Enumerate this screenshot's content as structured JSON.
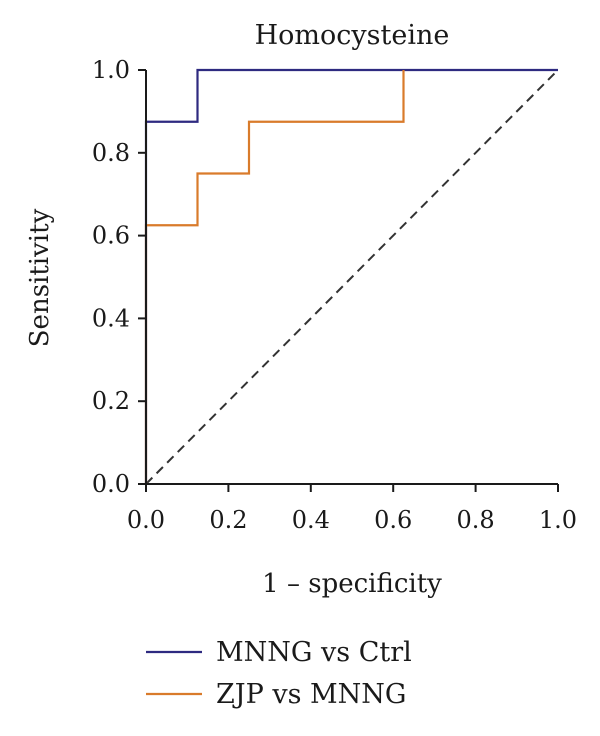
{
  "chart_data": {
    "type": "line",
    "title": "Homocysteine",
    "xlabel": "1 – specificity",
    "ylabel": "Sensitivity",
    "xlim": [
      0.0,
      1.0
    ],
    "ylim": [
      0.0,
      1.0
    ],
    "x_ticks": [
      "0.0",
      "0.2",
      "0.4",
      "0.6",
      "0.8",
      "1.0"
    ],
    "y_ticks": [
      "0.0",
      "0.2",
      "0.4",
      "0.6",
      "0.8",
      "1.0"
    ],
    "grid": false,
    "legend_position": "bottom",
    "reference_line": {
      "style": "dashed",
      "color": "#333333",
      "x": [
        0.0,
        1.0
      ],
      "y": [
        0.0,
        1.0
      ]
    },
    "series": [
      {
        "name": "MNNG vs Ctrl",
        "color": "#2e2a80",
        "x": [
          0.0,
          0.0,
          0.125,
          0.125,
          1.0
        ],
        "y": [
          0.0,
          0.875,
          0.875,
          1.0,
          1.0
        ]
      },
      {
        "name": "ZJP vs MNNG",
        "color": "#d97b2b",
        "x": [
          0.0,
          0.0,
          0.125,
          0.125,
          0.25,
          0.25,
          0.625,
          0.625
        ],
        "y": [
          0.0,
          0.625,
          0.625,
          0.75,
          0.75,
          0.875,
          0.875,
          1.0
        ]
      }
    ]
  }
}
